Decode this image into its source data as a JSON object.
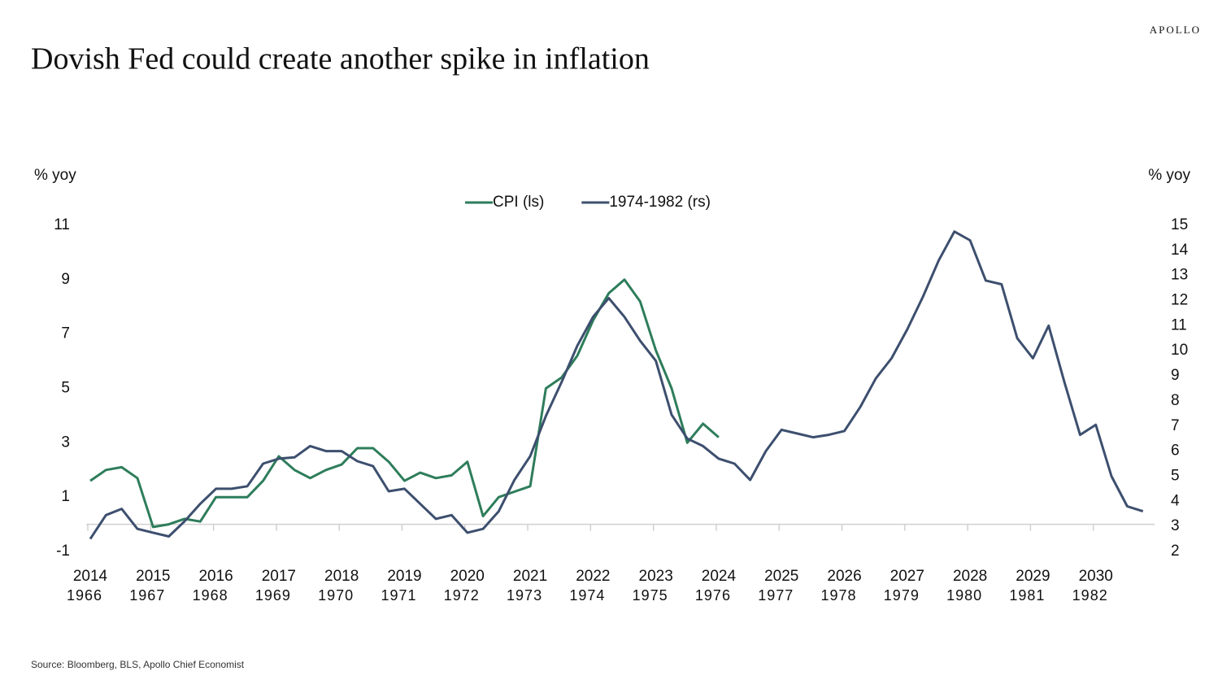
{
  "brand": "APOLLO",
  "chart_data": {
    "type": "line",
    "title": "Dovish Fed could create another spike in inflation",
    "y_label": "% yoy",
    "y2_label": "% yoy",
    "source": "Source: Bloomberg, BLS, Apollo Chief Economist",
    "x": [
      2014,
      2014.25,
      2014.5,
      2014.75,
      2015,
      2015.25,
      2015.5,
      2015.75,
      2016,
      2016.25,
      2016.5,
      2016.75,
      2017,
      2017.25,
      2017.5,
      2017.75,
      2018,
      2018.25,
      2018.5,
      2018.75,
      2019,
      2019.25,
      2019.5,
      2019.75,
      2020,
      2020.25,
      2020.5,
      2020.75,
      2021,
      2021.25,
      2021.5,
      2021.75,
      2022,
      2022.25,
      2022.5,
      2022.75,
      2023,
      2023.25,
      2023.5,
      2023.75,
      2024,
      2024.25,
      2024.5,
      2024.75,
      2025,
      2025.25,
      2025.5,
      2025.75,
      2026,
      2026.25,
      2026.5,
      2026.75,
      2027,
      2027.25,
      2027.5,
      2027.75,
      2028,
      2028.25,
      2028.5,
      2028.75,
      2029,
      2029.25,
      2029.5,
      2029.75,
      2030,
      2030.25,
      2030.5,
      2030.75
    ],
    "series": [
      {
        "name": "CPI (ls)",
        "color": "#2e7d5b",
        "axis": "y",
        "values": [
          1.6,
          2.0,
          2.1,
          1.7,
          -0.1,
          0.0,
          0.2,
          0.1,
          1.0,
          1.0,
          1.0,
          1.6,
          2.5,
          2.0,
          1.7,
          2.0,
          2.2,
          2.8,
          2.8,
          2.3,
          1.6,
          1.9,
          1.7,
          1.8,
          2.3,
          0.3,
          1.0,
          1.2,
          1.4,
          5.0,
          5.4,
          6.2,
          7.5,
          8.5,
          9.0,
          8.2,
          6.4,
          5.0,
          3.0,
          3.7,
          3.2,
          null,
          null,
          null,
          null,
          null,
          null,
          null,
          null,
          null,
          null,
          null,
          null,
          null,
          null,
          null,
          null,
          null,
          null,
          null,
          null,
          null,
          null,
          null,
          null,
          null,
          null,
          null
        ]
      },
      {
        "name": "1974-1982 (rs)",
        "color": "#3d4f6e",
        "axis": "y2",
        "values": [
          2.5,
          3.45,
          3.7,
          2.9,
          2.75,
          2.6,
          3.2,
          3.9,
          4.5,
          4.5,
          4.6,
          5.5,
          5.7,
          5.75,
          6.2,
          6.0,
          6.0,
          5.6,
          5.4,
          4.4,
          4.5,
          3.9,
          3.3,
          3.45,
          2.75,
          2.9,
          3.6,
          4.85,
          5.8,
          7.4,
          8.75,
          10.2,
          11.35,
          12.1,
          11.35,
          10.4,
          9.6,
          7.45,
          6.5,
          6.2,
          5.7,
          5.5,
          4.85,
          6.0,
          6.85,
          6.7,
          6.55,
          6.65,
          6.8,
          7.75,
          8.9,
          9.7,
          10.85,
          12.15,
          13.6,
          14.75,
          14.4,
          12.8,
          12.65,
          10.5,
          9.7,
          11.0,
          8.75,
          6.65,
          7.05,
          5.0,
          3.8,
          3.6
        ]
      }
    ],
    "xlim": [
      2014,
      2031
    ],
    "xticks": [
      2014,
      2015,
      2016,
      2017,
      2018,
      2019,
      2020,
      2021,
      2022,
      2023,
      2024,
      2025,
      2026,
      2027,
      2028,
      2029,
      2030
    ],
    "x2ticks": [
      1966,
      1967,
      1968,
      1969,
      1970,
      1971,
      1972,
      1973,
      1974,
      1975,
      1976,
      1977,
      1978,
      1979,
      1980,
      1981,
      1982
    ],
    "ylim": [
      -1,
      11
    ],
    "yticks": [
      -1,
      1,
      3,
      5,
      7,
      9,
      11
    ],
    "y2lim": [
      2,
      15
    ],
    "y2ticks": [
      2,
      3,
      4,
      5,
      6,
      7,
      8,
      9,
      10,
      11,
      12,
      13,
      14,
      15
    ],
    "legend": "top"
  }
}
